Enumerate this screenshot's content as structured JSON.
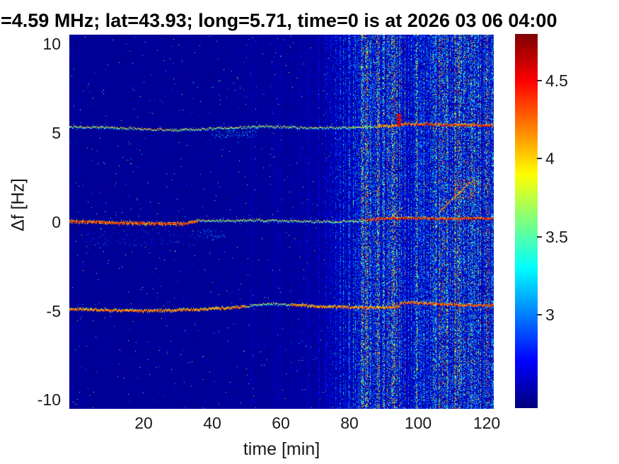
{
  "title": "=4.59 MHz;  lat=43.93; long=5.71, time=0 is at 2026 03 06 04:00",
  "axes": {
    "xlabel": "time [min]",
    "ylabel": "Δf [Hz]",
    "xticks": [
      "20",
      "40",
      "60",
      "80",
      "100",
      "120"
    ],
    "yticks": [
      "10",
      "5",
      "0",
      "-5",
      "-10"
    ]
  },
  "colorbar": {
    "ticks": [
      "4.5",
      "4",
      "3.5",
      "3"
    ],
    "tick_values": [
      4.5,
      4,
      3.5,
      3
    ],
    "vmin": 2.4,
    "vmax": 4.8,
    "colormap": "jet"
  },
  "chart_data": {
    "type": "heatmap",
    "title": "=4.59 MHz;  lat=43.93; long=5.71, time=0 is at 2026 03 06 04:00",
    "xlabel": "time [min]",
    "ylabel": "Δf [Hz]",
    "x_range": [
      -1.5,
      122.5
    ],
    "y_range": [
      -10.52,
      10.52
    ],
    "color_range": [
      2.4,
      4.8
    ],
    "background_value": 2.45,
    "noise_profile": [
      [
        -1.5,
        0.012
      ],
      [
        40,
        0.014
      ],
      [
        55,
        0.03
      ],
      [
        65,
        0.05
      ],
      [
        72,
        0.09
      ],
      [
        76,
        0.16
      ],
      [
        80,
        0.28
      ],
      [
        84,
        0.4
      ],
      [
        87,
        0.48
      ],
      [
        90,
        0.52
      ],
      [
        95,
        0.55
      ],
      [
        100,
        0.6
      ],
      [
        110,
        0.68
      ],
      [
        122.5,
        0.72
      ]
    ],
    "faint_stripes": [
      [
        51.3,
        51.9,
        0.1
      ],
      [
        59.7,
        60.3,
        0.07
      ],
      [
        73.2,
        73.8,
        0.12
      ]
    ],
    "bright_stripes": [
      [
        83.5,
        84.3,
        0.75
      ],
      [
        85.0,
        85.8,
        0.9
      ],
      [
        88.3,
        89.1,
        0.85
      ],
      [
        92.6,
        93.2,
        0.8
      ]
    ],
    "traces": [
      {
        "name": "upper-sideband (+5.4 Hz)",
        "points": [
          [
            -1.5,
            5.38
          ],
          [
            10,
            5.33
          ],
          [
            20,
            5.25
          ],
          [
            30,
            5.18
          ],
          [
            38,
            5.25
          ],
          [
            48,
            5.33
          ],
          [
            56,
            5.4
          ],
          [
            64,
            5.33
          ],
          [
            72,
            5.3
          ],
          [
            80,
            5.33
          ],
          [
            88,
            5.38
          ],
          [
            94,
            5.42
          ],
          [
            96,
            5.52
          ],
          [
            105,
            5.5
          ],
          [
            114,
            5.45
          ],
          [
            122.5,
            5.45
          ]
        ],
        "segments": [
          [
            -1.5,
            18,
            4.15,
            1
          ],
          [
            18,
            30,
            4.3,
            1
          ],
          [
            30,
            88,
            4.05,
            1
          ],
          [
            88,
            94.2,
            4.35,
            2
          ],
          [
            94.2,
            122.5,
            4.55,
            2
          ]
        ]
      },
      {
        "name": "carrier (0 Hz)",
        "points": [
          [
            -1.5,
            0.05
          ],
          [
            8,
            0.0
          ],
          [
            16,
            -0.05
          ],
          [
            24,
            -0.08
          ],
          [
            32,
            -0.08
          ],
          [
            36,
            0.1
          ],
          [
            44,
            0.08
          ],
          [
            52,
            0.12
          ],
          [
            60,
            0.08
          ],
          [
            68,
            0.05
          ],
          [
            76,
            0.03
          ],
          [
            84,
            0.08
          ],
          [
            90,
            0.2
          ],
          [
            96,
            0.22
          ],
          [
            104,
            0.2
          ],
          [
            112,
            0.2
          ],
          [
            122.5,
            0.22
          ]
        ],
        "segments": [
          [
            -1.5,
            36,
            4.55,
            3
          ],
          [
            36,
            85,
            4.1,
            1
          ],
          [
            85,
            122.5,
            4.6,
            2
          ]
        ]
      },
      {
        "name": "lower-sideband (-4.8 Hz)",
        "points": [
          [
            -1.5,
            -4.88
          ],
          [
            10,
            -4.95
          ],
          [
            20,
            -5.0
          ],
          [
            30,
            -4.95
          ],
          [
            40,
            -4.88
          ],
          [
            48,
            -4.8
          ],
          [
            54,
            -4.62
          ],
          [
            58,
            -4.58
          ],
          [
            64,
            -4.68
          ],
          [
            72,
            -4.75
          ],
          [
            80,
            -4.78
          ],
          [
            88,
            -4.82
          ],
          [
            94,
            -4.78
          ],
          [
            96,
            -4.52
          ],
          [
            104,
            -4.58
          ],
          [
            112,
            -4.65
          ],
          [
            122.5,
            -4.7
          ]
        ],
        "segments": [
          [
            -1.5,
            50,
            4.4,
            2
          ],
          [
            50,
            63,
            4.05,
            1
          ],
          [
            63,
            94,
            4.35,
            2
          ],
          [
            94,
            122.5,
            4.5,
            2
          ]
        ]
      }
    ],
    "features": [
      {
        "type": "spike",
        "t_range": [
          94.2,
          95.2
        ],
        "f_range": [
          5.45,
          6.05
        ],
        "value": 4.55
      },
      {
        "type": "line",
        "from": [
          93.0,
          0.3
        ],
        "to": [
          96.0,
          0.9
        ],
        "value": 4.15,
        "thickness": 1
      },
      {
        "type": "line",
        "from": [
          106.5,
          0.6
        ],
        "to": [
          115.5,
          2.3
        ],
        "value": 4.3,
        "thickness": 2
      },
      {
        "type": "blotch",
        "t_range": [
          111,
          117
        ],
        "f_range": [
          1.3,
          2.45
        ],
        "density": 0.16,
        "value": 4.1
      },
      {
        "type": "blotch",
        "t_range": [
          115.5,
          122.5
        ],
        "f_range": [
          1.7,
          2.4
        ],
        "density": 0.05,
        "value": 3.85
      },
      {
        "type": "blotch",
        "t_range": [
          40,
          53
        ],
        "f_range": [
          4.75,
          5.15
        ],
        "density": 0.1,
        "value": 3.1
      },
      {
        "type": "blotch",
        "t_range": [
          3,
          36
        ],
        "f_range": [
          -1.35,
          -0.35
        ],
        "density": 0.045,
        "value": 2.85
      },
      {
        "type": "blotch",
        "t_range": [
          36,
          44
        ],
        "f_range": [
          -0.9,
          -0.4
        ],
        "density": 0.1,
        "value": 3.0
      }
    ]
  }
}
